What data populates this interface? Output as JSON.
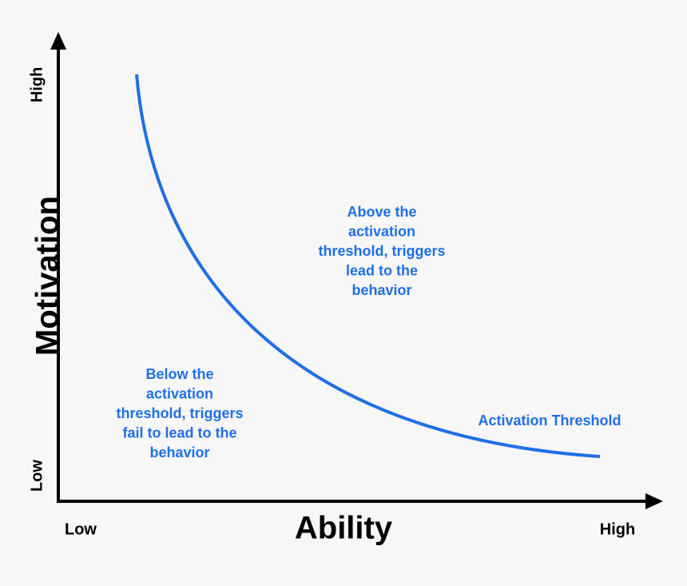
{
  "axes": {
    "y_label": "Motivation",
    "y_high": "High",
    "y_low": "Low",
    "x_label": "Ability",
    "x_low": "Low",
    "x_high": "High"
  },
  "curve_label": "Activation Threshold",
  "annotations": {
    "above": [
      "Above the",
      "activation",
      "threshold, triggers",
      "lead to the",
      "behavior"
    ],
    "below": [
      "Below the",
      "activation",
      "threshold, triggers",
      "fail to lead to the",
      "behavior"
    ]
  }
}
